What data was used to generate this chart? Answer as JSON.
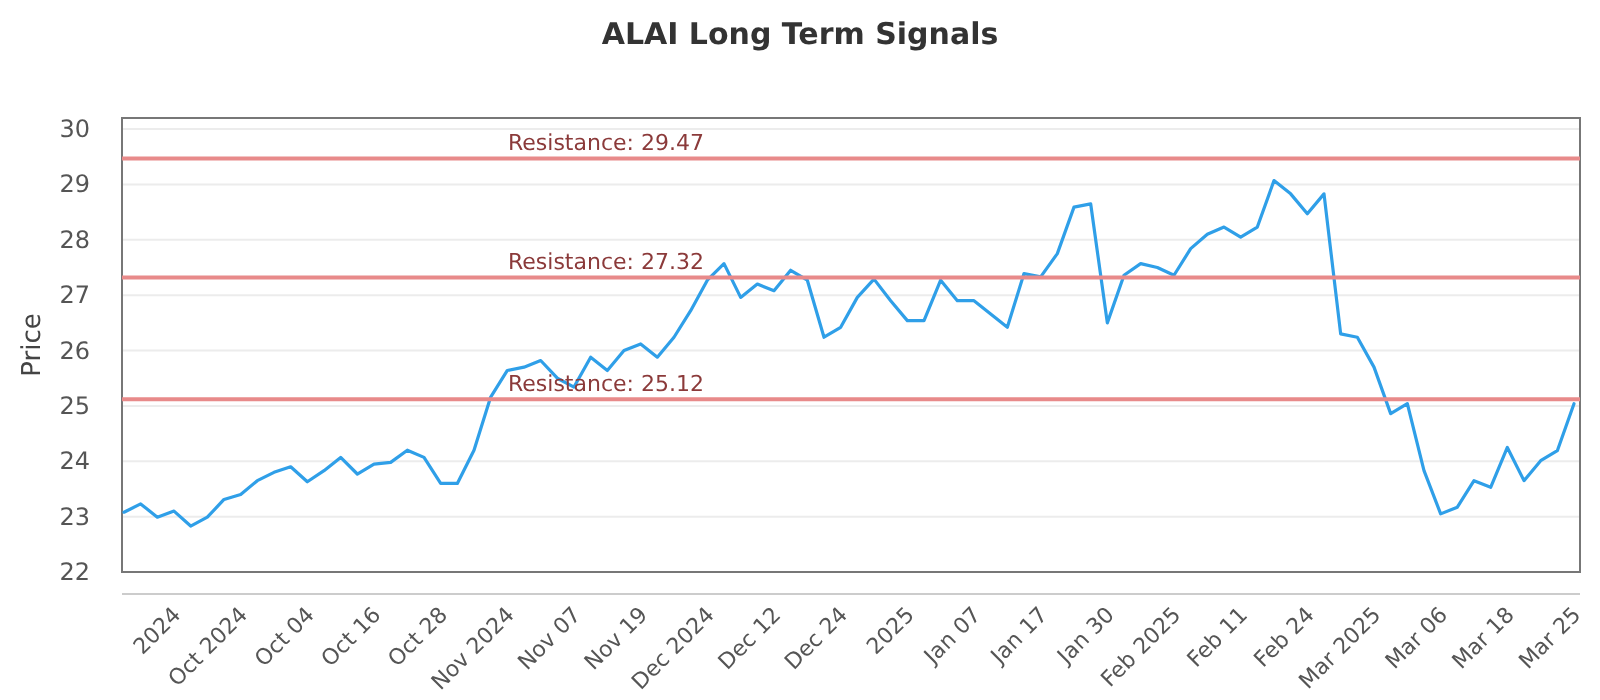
{
  "chart_data": {
    "type": "line",
    "title": "ALAI Long Term Signals",
    "ylabel": "Price",
    "categories": [
      null,
      null,
      null,
      "2024",
      null,
      null,
      null,
      "Oct 2024",
      null,
      null,
      null,
      "Oct 04",
      null,
      null,
      null,
      "Oct 16",
      null,
      null,
      null,
      "Oct 28",
      null,
      null,
      null,
      "Nov 2024",
      null,
      null,
      null,
      "Nov 07",
      null,
      null,
      null,
      "Nov 19",
      null,
      null,
      null,
      "Dec 2024",
      null,
      null,
      null,
      "Dec 12",
      null,
      null,
      null,
      "Dec 24",
      null,
      null,
      null,
      "2025",
      null,
      null,
      null,
      "Jan 07",
      null,
      null,
      null,
      "Jan 17",
      null,
      null,
      null,
      "Jan 30",
      null,
      null,
      null,
      "Feb 2025",
      null,
      null,
      null,
      "Feb 11",
      null,
      null,
      null,
      "Feb 24",
      null,
      null,
      null,
      "Mar 2025",
      null,
      null,
      null,
      "Mar 06",
      null,
      null,
      null,
      "Mar 18",
      null,
      null,
      null,
      "Mar 25"
    ],
    "series": [
      {
        "color": "#2f9fe8",
        "values": [
          23.08,
          23.23,
          22.99,
          23.1,
          22.83,
          22.99,
          23.31,
          23.4,
          23.65,
          23.8,
          23.9,
          23.63,
          23.83,
          24.07,
          23.77,
          23.95,
          23.98,
          24.2,
          24.07,
          23.6,
          23.6,
          24.2,
          25.16,
          25.64,
          25.7,
          25.82,
          25.5,
          25.34,
          25.88,
          25.64,
          26.0,
          26.12,
          25.88,
          26.24,
          26.72,
          27.27,
          27.57,
          26.96,
          27.2,
          27.08,
          27.45,
          27.27,
          26.24,
          26.42,
          26.96,
          27.29,
          26.9,
          26.54,
          26.54,
          27.27,
          26.9,
          26.9,
          26.66,
          26.42,
          27.39,
          27.33,
          27.75,
          28.59,
          28.65,
          26.5,
          27.36,
          27.57,
          27.5,
          27.36,
          27.84,
          28.1,
          28.23,
          28.05,
          28.23,
          29.07,
          28.83,
          28.47,
          28.83,
          26.3,
          26.24,
          25.7,
          24.86,
          25.04,
          23.83,
          23.05,
          23.17,
          23.65,
          23.53,
          24.25,
          23.65,
          24.01,
          24.19,
          25.04
        ]
      }
    ],
    "ylim": [
      22,
      30.2
    ],
    "yticks": [
      22,
      23,
      24,
      25,
      26,
      27,
      28,
      29,
      30
    ],
    "grid": "y",
    "marker": "none",
    "line_style": "solid",
    "ref_lines": [
      {
        "axis": "y",
        "value": 29.47,
        "label": "Resistance: 29.47",
        "color": "#e88a8a"
      },
      {
        "axis": "y",
        "value": 27.32,
        "label": "Resistance: 27.32",
        "color": "#e88a8a"
      },
      {
        "axis": "y",
        "value": 25.12,
        "label": "Resistance: 25.12",
        "color": "#e88a8a"
      }
    ]
  }
}
